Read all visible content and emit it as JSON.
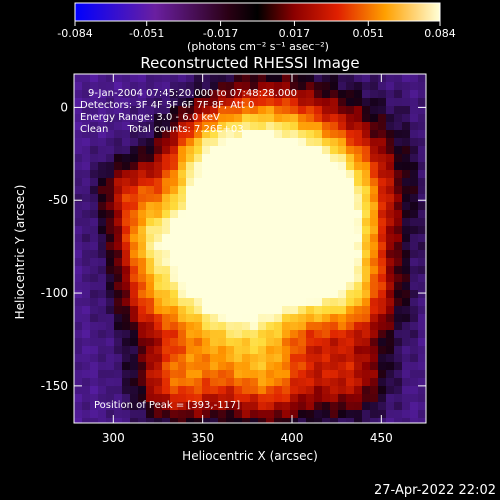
{
  "chart_data": {
    "type": "heatmap",
    "title": "Reconstructed RHESSI Image",
    "xlabel": "Heliocentric X (arcsec)",
    "ylabel": "Heliocentric Y (arcsec)",
    "xlim": [
      278,
      475
    ],
    "ylim": [
      -170,
      18
    ],
    "x_ticks": [
      300,
      350,
      400,
      450
    ],
    "y_ticks": [
      0,
      -50,
      -100,
      -150
    ],
    "colorbar": {
      "ticks": [
        "-0.084",
        "-0.051",
        "-0.017",
        "0.017",
        "0.051",
        "0.084"
      ],
      "units": "(photons cm⁻² s⁻¹ asec⁻²)",
      "range": [
        -0.084,
        0.084
      ]
    },
    "annotations": [
      "9-Jan-2004 07:45:20.000 to 07:48:28.000",
      "Detectors: 3F 4F 5F 6F 7F 8F, Att 0",
      "Energy Range: 3.0 - 6.0 keV",
      "Clean      Total counts: 7.26E+03"
    ],
    "peak_label": "Position of Peak = [393,-117]",
    "peak": [
      393,
      -117
    ],
    "grid": false,
    "colors": {
      "bg": "#000000",
      "fg": "#ffffff"
    }
  },
  "footer": {
    "timestamp": "27-Apr-2022 22:02"
  }
}
